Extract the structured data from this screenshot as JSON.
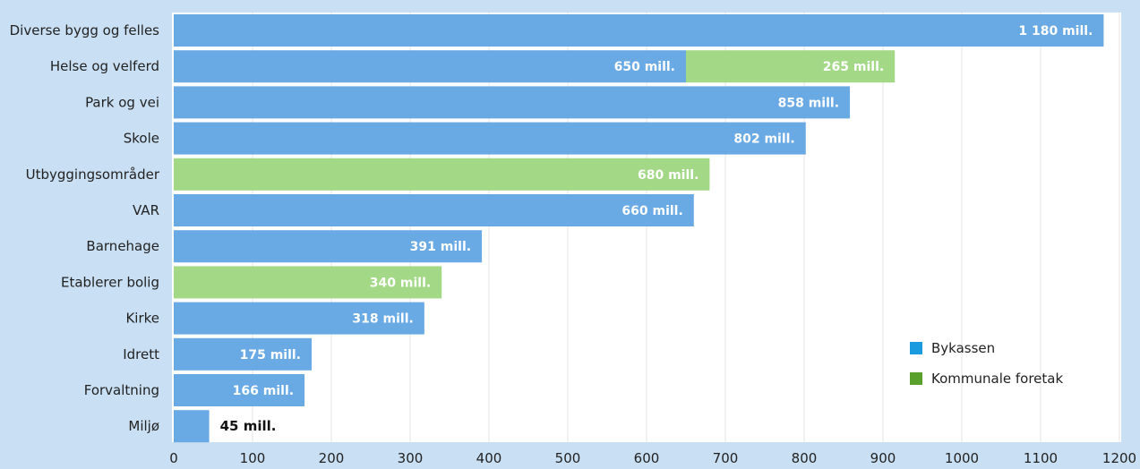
{
  "chart_data": {
    "type": "bar",
    "orientation": "horizontal",
    "stacked": true,
    "categories": [
      "Diverse bygg og felles",
      "Helse og velferd",
      "Park og vei",
      "Skole",
      "Utbyggingsområder",
      "VAR",
      "Barnehage",
      "Etablerer bolig",
      "Kirke",
      "Idrett",
      "Forvaltning",
      "Miljø"
    ],
    "series": [
      {
        "name": "Bykassen",
        "color": "#6aaae4",
        "values": [
          1180,
          650,
          858,
          802,
          0,
          660,
          391,
          0,
          318,
          175,
          166,
          45
        ]
      },
      {
        "name": "Kommunale foretak",
        "color": "#a3d886",
        "values": [
          0,
          265,
          0,
          0,
          680,
          0,
          0,
          340,
          0,
          0,
          0,
          0
        ]
      }
    ],
    "data_labels": {
      "Bykassen": [
        "1 180  mill.",
        "650  mill.",
        "858  mill.",
        "802  mill.",
        "",
        "660  mill.",
        "391  mill.",
        "",
        "318  mill.",
        "175  mill.",
        "166  mill.",
        "45  mill."
      ],
      "Kommunale foretak": [
        "",
        "265  mill.",
        "",
        "",
        "680  mill.",
        "",
        "",
        "340  mill.",
        "",
        "",
        "",
        ""
      ]
    },
    "xlim": [
      0,
      1200
    ],
    "xticks": [
      0,
      100,
      200,
      300,
      400,
      500,
      600,
      700,
      800,
      900,
      1000,
      1100,
      1200
    ],
    "grid": true,
    "legend": {
      "position": "bottom-right",
      "entries": [
        {
          "label": "Bykassen",
          "color": "#1a9be0"
        },
        {
          "label": "Kommunale foretak",
          "color": "#5aa02c"
        }
      ]
    },
    "colors": {
      "background": "#c9dff3",
      "plot_background": "#ffffff",
      "grid": "#e4e4e4"
    }
  }
}
